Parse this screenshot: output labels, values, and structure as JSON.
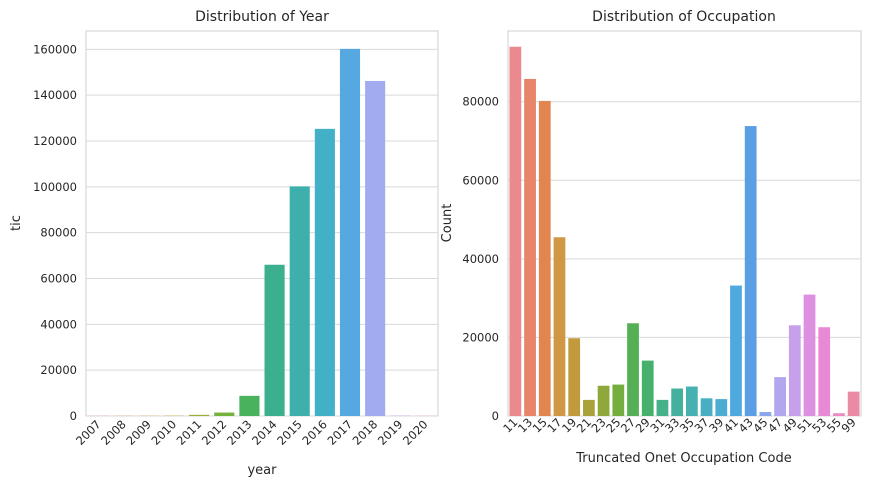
{
  "chart_data": [
    {
      "type": "bar",
      "title": "Distribution of Year",
      "xlabel": "year",
      "ylabel": "tic",
      "categories": [
        "2007",
        "2008",
        "2009",
        "2010",
        "2011",
        "2012",
        "2013",
        "2014",
        "2015",
        "2016",
        "2017",
        "2018",
        "2019",
        "2020"
      ],
      "values": [
        80,
        90,
        100,
        150,
        500,
        1500,
        8800,
        66000,
        100200,
        125300,
        160200,
        146200,
        150,
        60
      ],
      "colors": [
        "#ea8a8f",
        "#e88d70",
        "#dc9a53",
        "#c3a63a",
        "#9dab38",
        "#74b13d",
        "#48b25d",
        "#3caf8f",
        "#3db0ad",
        "#42b1c8",
        "#55a9e0",
        "#a2abef",
        "#c8a0ec",
        "#e889d4"
      ],
      "ylim": [
        0,
        168000
      ],
      "yticks": [
        0,
        20000,
        40000,
        60000,
        80000,
        100000,
        120000,
        140000,
        160000
      ],
      "grid": "y"
    },
    {
      "type": "bar",
      "title": "Distribution of Occupation",
      "xlabel": "Truncated Onet Occupation Code",
      "ylabel": "Count",
      "categories": [
        "11",
        "13",
        "15",
        "17",
        "19",
        "21",
        "23",
        "25",
        "27",
        "29",
        "31",
        "33",
        "35",
        "37",
        "39",
        "41",
        "43",
        "45",
        "47",
        "49",
        "51",
        "53",
        "55",
        "99"
      ],
      "values": [
        94000,
        85800,
        80200,
        45500,
        19800,
        4100,
        7700,
        8000,
        23600,
        14100,
        4100,
        7000,
        7500,
        4500,
        4300,
        33200,
        73800,
        1000,
        9900,
        23100,
        30900,
        22600,
        700,
        6200
      ],
      "colors": [
        "#ea8a8f",
        "#e6856a",
        "#e2864f",
        "#d09845",
        "#c29a3e",
        "#a9a23c",
        "#8fa83c",
        "#76ad3f",
        "#55b055",
        "#47b06c",
        "#45b08a",
        "#46b09f",
        "#47b0b1",
        "#48afc3",
        "#4aaed3",
        "#4ea9de",
        "#5a9fe3",
        "#8aa7ec",
        "#b2a6ee",
        "#c6a0ea",
        "#dd90e0",
        "#e989d4",
        "#ea8ac1",
        "#ea8aa5"
      ],
      "ylim": [
        0,
        98000
      ],
      "yticks": [
        0,
        20000,
        40000,
        60000,
        80000
      ],
      "grid": "y"
    }
  ]
}
